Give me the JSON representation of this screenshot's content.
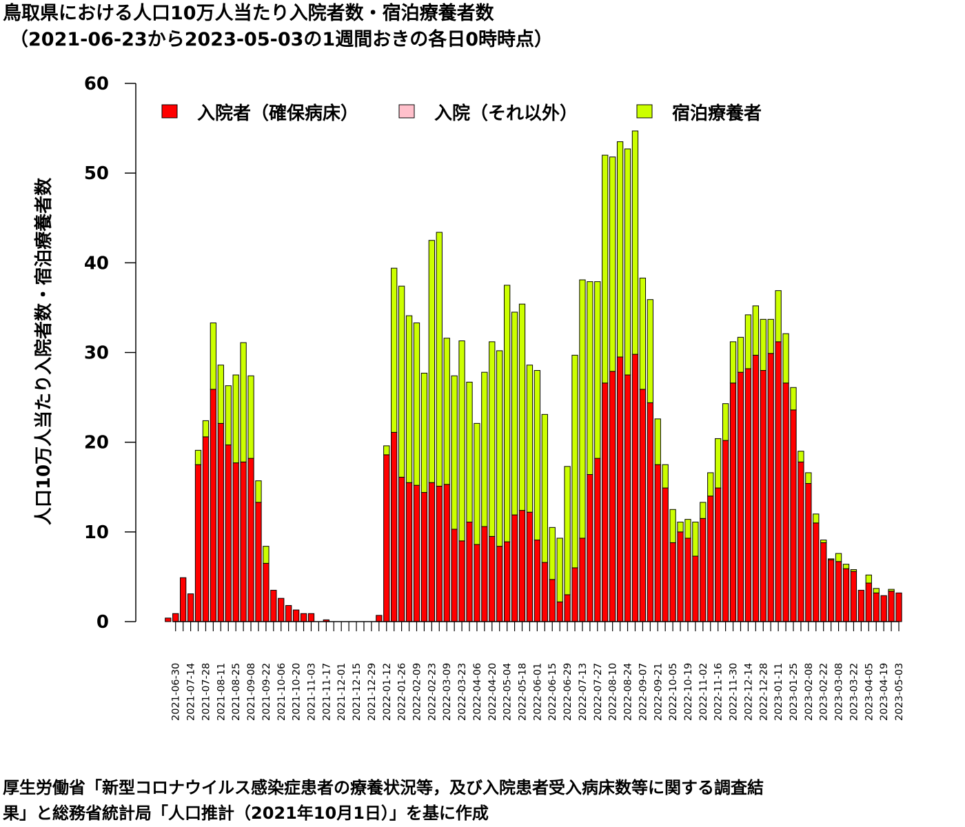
{
  "title_line1": "鳥取県における人口10万人当たり入院者数・宿泊療養者数",
  "title_line2": "（2021-06-23から2023-05-03の1週間おきの各日0時時点）",
  "source_line1": "厚生労働省「新型コロナウイルス感染症患者の療養状況等，及び入院患者受入病床数等に関する調査結",
  "source_line2": "果」と総務省統計局「人口推計（2021年10月1日）」を基に作成",
  "colors": {
    "hospital": "#ff0000",
    "other": "#ffc0cb",
    "hotel": "#ccff00",
    "axis": "#000000"
  },
  "chart_data": {
    "type": "bar",
    "stacked": true,
    "ylabel": "人口10万人当たり入院者数・宿泊療養者数",
    "ylim": [
      0,
      60
    ],
    "yticks": [
      0,
      10,
      20,
      30,
      40,
      50,
      60
    ],
    "legend": [
      "入院者（確保病床）",
      "入院（それ以外）",
      "宿泊療養者"
    ],
    "legend_position": "top",
    "xtick_labels": [
      "2021-06-30",
      "2021-07-14",
      "2021-07-28",
      "2021-08-11",
      "2021-08-25",
      "2021-09-08",
      "2021-09-22",
      "2021-10-06",
      "2021-10-20",
      "2021-11-03",
      "2021-11-17",
      "2021-12-01",
      "2021-12-15",
      "2021-12-29",
      "2022-01-12",
      "2022-01-26",
      "2022-02-09",
      "2022-02-23",
      "2022-03-09",
      "2022-03-23",
      "2022-04-06",
      "2022-04-20",
      "2022-05-04",
      "2022-05-18",
      "2022-06-01",
      "2022-06-15",
      "2022-06-29",
      "2022-07-13",
      "2022-07-27",
      "2022-08-10",
      "2022-08-24",
      "2022-09-07",
      "2022-09-21",
      "2022-10-05",
      "2022-10-19",
      "2022-11-02",
      "2022-11-16",
      "2022-11-30",
      "2022-12-14",
      "2022-12-28",
      "2023-01-11",
      "2023-01-25",
      "2023-02-08",
      "2023-02-22",
      "2023-03-08",
      "2023-03-22",
      "2023-04-05",
      "2023-04-19",
      "2023-05-03"
    ],
    "series": [
      {
        "name": "入院者（確保病床）",
        "values": [
          0.4,
          0.9,
          4.9,
          3.1,
          17.5,
          20.6,
          25.9,
          22.1,
          19.7,
          17.7,
          17.8,
          18.2,
          13.3,
          6.5,
          3.5,
          2.6,
          1.8,
          1.3,
          0.9,
          0.9,
          0,
          0.2,
          0,
          0,
          0,
          0,
          0,
          0,
          0.7,
          18.6,
          21.1,
          16.1,
          15.5,
          15.2,
          14.4,
          15.5,
          15.1,
          15.3,
          10.3,
          9.0,
          11.1,
          8.6,
          10.6,
          9.5,
          8.4,
          8.9,
          11.9,
          12.4,
          12.2,
          9.1,
          6.6,
          4.7,
          2.2,
          3.0,
          6.0,
          9.3,
          16.4,
          18.2,
          26.6,
          27.9,
          29.5,
          27.5,
          29.8,
          25.9,
          24.4,
          17.5,
          14.9,
          8.8,
          10.0,
          9.3,
          7.3,
          11.5,
          14.0,
          14.9,
          20.2,
          26.6,
          27.8,
          28.2,
          29.7,
          28.0,
          29.9,
          31.2,
          26.6,
          23.6,
          17.8,
          15.4,
          11.0,
          8.8,
          6.9,
          6.7,
          5.9,
          5.6,
          3.5,
          4.3,
          3.2,
          2.9,
          3.4,
          3.2
        ]
      },
      {
        "name": "入院（それ以外）",
        "values": [
          0,
          0,
          0,
          0,
          0,
          0,
          0,
          0,
          0,
          0,
          0,
          0,
          0,
          0,
          0,
          0,
          0,
          0,
          0,
          0,
          0,
          0,
          0,
          0,
          0,
          0,
          0,
          0,
          0,
          0,
          0,
          0,
          0,
          0,
          0,
          0,
          0,
          0,
          0,
          0,
          0,
          0,
          0,
          0,
          0,
          0,
          0,
          0,
          0,
          0,
          0,
          0,
          0,
          0,
          0,
          0,
          0,
          0,
          0,
          0,
          0,
          0,
          0,
          0,
          0,
          0,
          0,
          0,
          0,
          0,
          0,
          0,
          0,
          0,
          0,
          0,
          0,
          0,
          0,
          0,
          0,
          0,
          0,
          0,
          0,
          0,
          0,
          0,
          0,
          0,
          0,
          0,
          0,
          0,
          0,
          0,
          0,
          0
        ]
      },
      {
        "name": "宿泊療養者",
        "values": [
          0,
          0,
          0,
          0,
          1.6,
          1.8,
          7.4,
          6.5,
          6.6,
          9.8,
          13.3,
          9.2,
          2.4,
          1.9,
          0,
          0,
          0,
          0,
          0,
          0,
          0,
          0,
          0,
          0,
          0,
          0,
          0,
          0,
          0,
          1.0,
          18.3,
          21.3,
          18.6,
          18.1,
          13.3,
          27.0,
          28.3,
          16.3,
          17.1,
          22.3,
          15.6,
          13.5,
          17.2,
          21.7,
          21.8,
          28.6,
          22.6,
          23.0,
          16.4,
          18.9,
          16.5,
          5.8,
          7.1,
          14.3,
          23.7,
          28.8,
          21.5,
          19.7,
          25.4,
          23.9,
          24.0,
          25.2,
          24.9,
          12.4,
          11.5,
          5.1,
          2.6,
          3.7,
          1.1,
          2.1,
          3.8,
          1.8,
          2.6,
          5.5,
          4.1,
          4.6,
          3.9,
          6.0,
          5.5,
          5.7,
          3.8,
          5.7,
          5.5,
          2.5,
          1.2,
          1.2,
          1.0,
          0.3,
          0.1,
          0.9,
          0.5,
          0.2,
          0,
          0.9,
          0.5,
          0,
          0.2,
          0
        ]
      }
    ]
  }
}
